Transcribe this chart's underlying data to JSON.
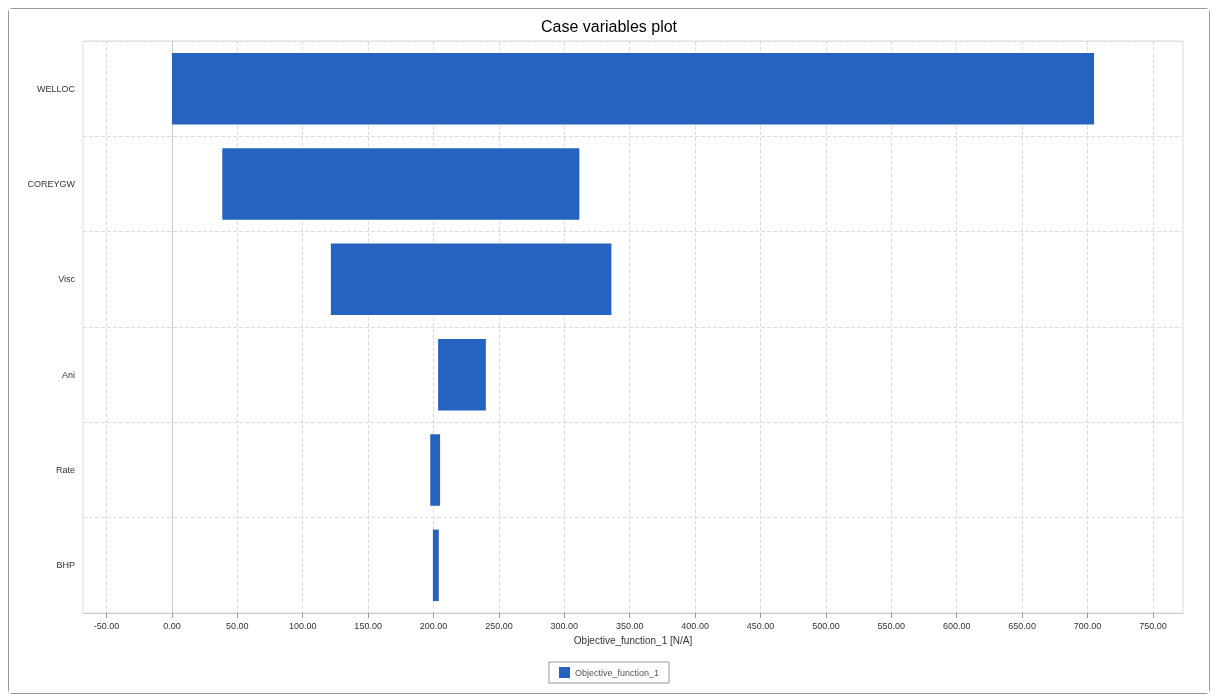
{
  "chart_data": {
    "type": "bar",
    "orientation": "horizontal",
    "title": "Case variables plot",
    "xlabel": "Objective_function_1 [N/A]",
    "categories": [
      "WELLOC",
      "COREYGW",
      "Visc",
      "Ani",
      "Rate",
      "BHP"
    ],
    "series": [
      {
        "name": "Objective_function_1",
        "color": "#2563c0",
        "base": [
          0,
          38.5,
          121.5,
          203.5,
          197.5,
          199.5
        ],
        "values": [
          705,
          273,
          214.5,
          36.5,
          7.5,
          4.5
        ]
      }
    ],
    "xlim": [
      -68,
      773
    ],
    "xticks": [
      {
        "value": -50,
        "label": "-50.00"
      },
      {
        "value": 0,
        "label": "0.00"
      },
      {
        "value": 50,
        "label": "50.00"
      },
      {
        "value": 100,
        "label": "100.00"
      },
      {
        "value": 150,
        "label": "150.00"
      },
      {
        "value": 200,
        "label": "200.00"
      },
      {
        "value": 250,
        "label": "250.00"
      },
      {
        "value": 300,
        "label": "300.00"
      },
      {
        "value": 350,
        "label": "350.00"
      },
      {
        "value": 400,
        "label": "400.00"
      },
      {
        "value": 450,
        "label": "450.00"
      },
      {
        "value": 500,
        "label": "500.00"
      },
      {
        "value": 550,
        "label": "550.00"
      },
      {
        "value": 600,
        "label": "600.00"
      },
      {
        "value": 650,
        "label": "650.00"
      },
      {
        "value": 700,
        "label": "700.00"
      },
      {
        "value": 750,
        "label": "750.00"
      }
    ],
    "grid": true,
    "legend": "bottom"
  }
}
